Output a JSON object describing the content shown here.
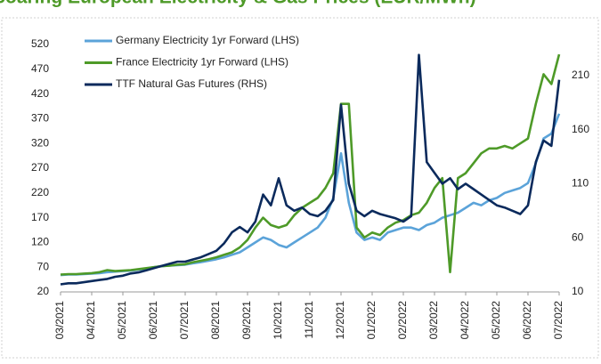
{
  "chart_data": {
    "type": "line",
    "title": "Soaring European Electricity & Gas Prices (EUR/MWh)",
    "categories": [
      "03/2021",
      null,
      null,
      null,
      "04/2021",
      null,
      null,
      null,
      "05/2021",
      null,
      null,
      null,
      "06/2021",
      null,
      null,
      null,
      "07/2021",
      null,
      null,
      null,
      "08/2021",
      null,
      null,
      null,
      "09/2021",
      null,
      null,
      null,
      "10/2021",
      null,
      null,
      null,
      "11/2021",
      null,
      null,
      null,
      "12/2021",
      null,
      null,
      null,
      "01/2022",
      null,
      null,
      null,
      "02/2022",
      null,
      null,
      null,
      "03/2022",
      null,
      null,
      null,
      "04/2022",
      null,
      null,
      null,
      "05/2022",
      null,
      null,
      null,
      "06/2022",
      null,
      null,
      null,
      "07/2022"
    ],
    "series": [
      {
        "name": "Germany Electricity 1yr Forward (LHS)",
        "color": "#5ba3d9",
        "axis": "y",
        "values": [
          54,
          55,
          55,
          56,
          57,
          58,
          60,
          61,
          62,
          63,
          65,
          67,
          70,
          72,
          73,
          74,
          75,
          78,
          80,
          83,
          86,
          90,
          95,
          100,
          110,
          120,
          130,
          125,
          115,
          110,
          120,
          130,
          140,
          150,
          170,
          210,
          300,
          200,
          140,
          125,
          130,
          125,
          140,
          145,
          150,
          150,
          145,
          155,
          160,
          170,
          175,
          180,
          190,
          200,
          195,
          205,
          210,
          220,
          225,
          230,
          240,
          280,
          330,
          340,
          380
        ]
      },
      {
        "name": "France Electricity 1yr Forward (LHS)",
        "color": "#4e9a28",
        "axis": "y",
        "values": [
          55,
          56,
          56,
          57,
          58,
          60,
          64,
          62,
          63,
          64,
          66,
          68,
          70,
          72,
          73,
          75,
          76,
          80,
          83,
          86,
          90,
          95,
          100,
          110,
          125,
          150,
          170,
          155,
          150,
          155,
          175,
          190,
          200,
          210,
          230,
          260,
          400,
          400,
          150,
          130,
          140,
          135,
          150,
          160,
          165,
          175,
          180,
          200,
          230,
          250,
          60,
          250,
          260,
          280,
          300,
          310,
          310,
          315,
          310,
          320,
          330,
          400,
          460,
          440,
          500
        ]
      },
      {
        "name": "TTF Natural Gas Futures (RHS)",
        "color": "#0b2a5c",
        "axis": "y2",
        "values": [
          17,
          18,
          18,
          19,
          20,
          21,
          22,
          24,
          25,
          27,
          28,
          30,
          32,
          34,
          36,
          38,
          38,
          40,
          42,
          45,
          48,
          55,
          65,
          70,
          65,
          75,
          100,
          90,
          115,
          90,
          85,
          88,
          82,
          80,
          85,
          95,
          183,
          110,
          85,
          80,
          85,
          82,
          80,
          78,
          75,
          80,
          229,
          130,
          120,
          110,
          115,
          105,
          110,
          105,
          100,
          95,
          90,
          88,
          85,
          82,
          90,
          130,
          150,
          145,
          206
        ]
      }
    ],
    "ylim": [
      20,
      547
    ],
    "yticks": [
      20,
      70,
      120,
      170,
      220,
      270,
      320,
      370,
      420,
      470,
      520
    ],
    "y2lim": [
      10,
      251
    ],
    "y2ticks": [
      10,
      60,
      110,
      160,
      210
    ],
    "legend": "top-left"
  }
}
